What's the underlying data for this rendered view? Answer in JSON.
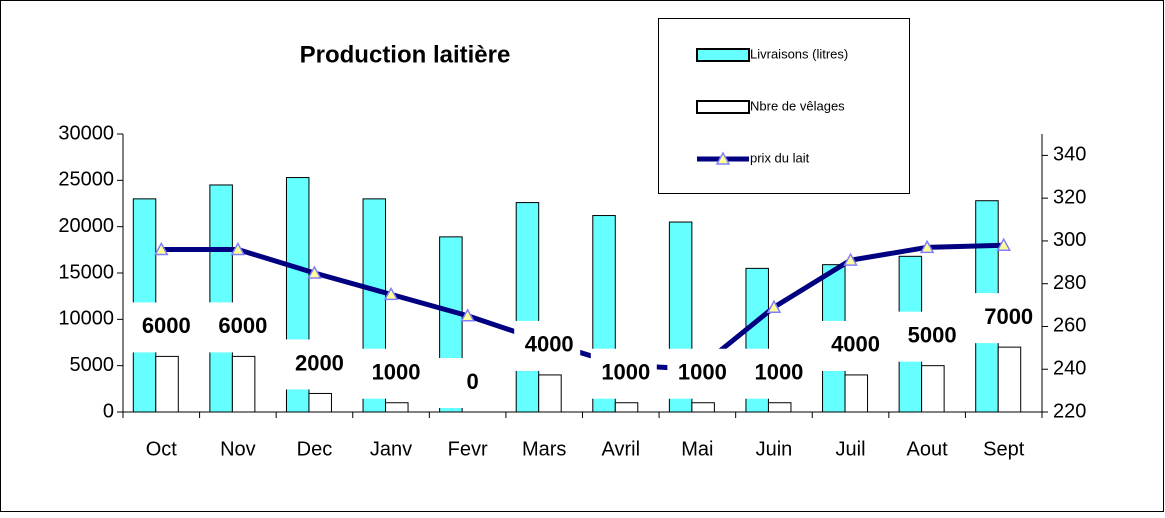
{
  "chart_data": {
    "type": "bar",
    "title": "Production laitière",
    "categories": [
      "Oct",
      "Nov",
      "Dec",
      "Janv",
      "Fevr",
      "Mars",
      "Avril",
      "Mai",
      "Juin",
      "Juil",
      "Aout",
      "Sept"
    ],
    "series": [
      {
        "name": "Livraisons (litres)",
        "color": "#66ffff",
        "values": [
          23000,
          24500,
          25300,
          23000,
          18900,
          22600,
          21200,
          20500,
          15500,
          15900,
          16800,
          22800
        ]
      },
      {
        "name": "Nbre de  vêlages",
        "color": "#ffffff",
        "values": [
          6000,
          6000,
          2000,
          1000,
          0,
          4000,
          1000,
          1000,
          1000,
          4000,
          5000,
          7000
        ]
      },
      {
        "name": "prix du lait",
        "color": "#000080",
        "type": "line",
        "axis": "y2",
        "values": [
          296,
          296,
          285,
          275,
          265,
          253,
          242,
          240,
          269,
          291,
          297,
          298
        ]
      }
    ],
    "ylim": [
      0,
      30000
    ],
    "yticks": [
      0,
      5000,
      10000,
      15000,
      20000,
      25000,
      30000
    ],
    "y2lim": [
      220,
      350
    ],
    "y2ticks": [
      220,
      240,
      260,
      280,
      300,
      320,
      340
    ],
    "grid": false
  }
}
